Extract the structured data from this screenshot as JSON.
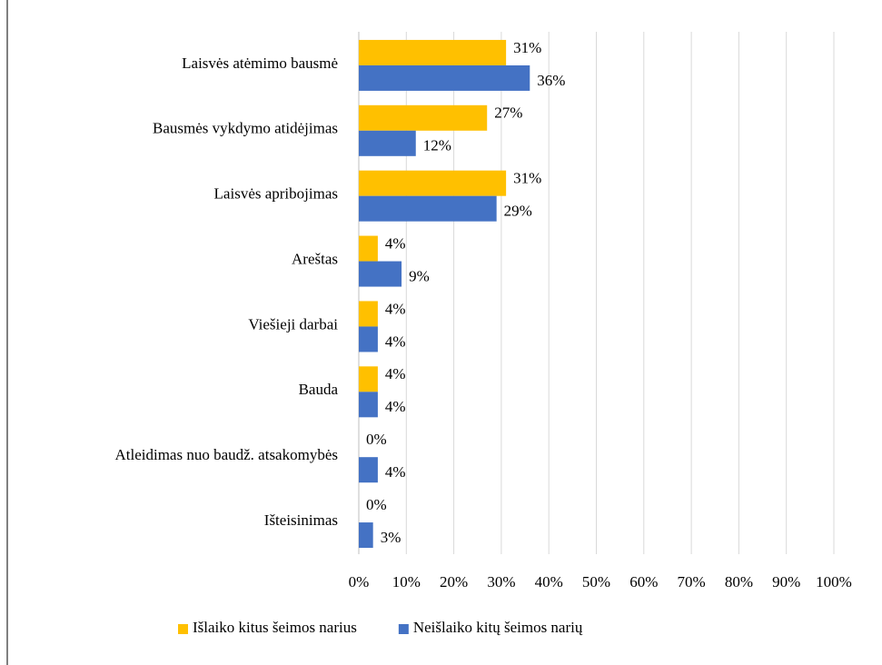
{
  "chart_data": {
    "type": "bar",
    "orientation": "horizontal",
    "categories": [
      "Laisvės atėmimo bausmė",
      "Bausmės vykdymo atidėjimas",
      "Laisvės apribojimas",
      "Areštas",
      "Viešieji darbai",
      "Bauda",
      "Atleidimas nuo baudž. atsakomybės",
      "Išteisinimas"
    ],
    "series": [
      {
        "name": "Išlaiko kitus šeimos narius",
        "color": "#ffc000",
        "values": [
          31,
          27,
          31,
          4,
          4,
          4,
          0,
          0
        ],
        "value_labels": [
          "31%",
          "27%",
          "31%",
          "4%",
          "4%",
          "4%",
          "0%",
          "0%"
        ]
      },
      {
        "name": "Neišlaiko kitų šeimos narių",
        "color": "#4472c4",
        "values": [
          36,
          12,
          29,
          9,
          4,
          4,
          4,
          3
        ],
        "value_labels": [
          "36%",
          "12%",
          "29%",
          "9%",
          "4%",
          "4%",
          "4%",
          "3%"
        ]
      }
    ],
    "xlim": [
      0,
      100
    ],
    "xticks": [
      {
        "value": 0,
        "label": "0%"
      },
      {
        "value": 10,
        "label": "10%"
      },
      {
        "value": 20,
        "label": "20%"
      },
      {
        "value": 30,
        "label": "30%"
      },
      {
        "value": 40,
        "label": "40%"
      },
      {
        "value": 50,
        "label": "50%"
      },
      {
        "value": 60,
        "label": "60%"
      },
      {
        "value": 70,
        "label": "70%"
      },
      {
        "value": 80,
        "label": "80%"
      },
      {
        "value": 90,
        "label": "90%"
      },
      {
        "value": 100,
        "label": "100%"
      }
    ],
    "grid": true,
    "legend": "bottom"
  }
}
